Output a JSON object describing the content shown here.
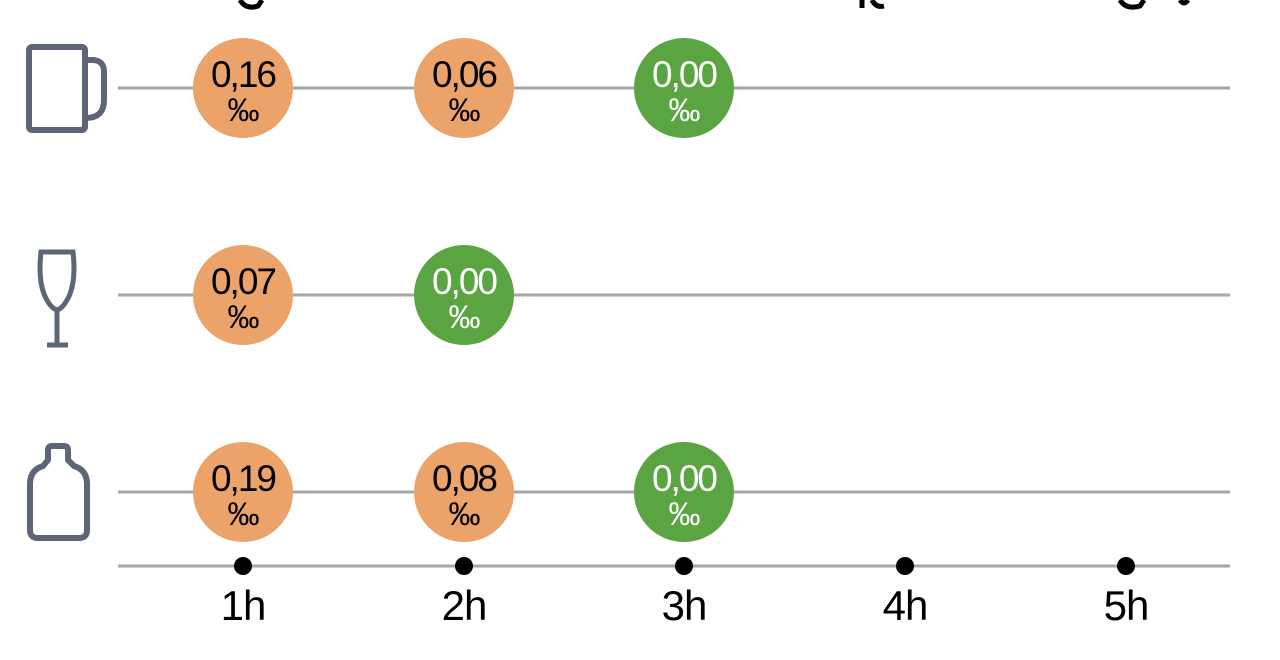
{
  "chart_data": {
    "type": "scatter",
    "title": "",
    "xlabel": "",
    "ylabel": "",
    "x_ticks": [
      "1h",
      "2h",
      "3h",
      "4h",
      "5h"
    ],
    "unit": "‰",
    "grid": false,
    "legend": "none",
    "series": [
      {
        "icon": "beer-mug-icon",
        "values": [
          {
            "x": "1h",
            "label": "0,16",
            "value": 0.16
          },
          {
            "x": "2h",
            "label": "0,06",
            "value": 0.06
          },
          {
            "x": "3h",
            "label": "0,00",
            "value": 0.0
          }
        ]
      },
      {
        "icon": "wine-glass-icon",
        "values": [
          {
            "x": "1h",
            "label": "0,07",
            "value": 0.07
          },
          {
            "x": "2h",
            "label": "0,00",
            "value": 0.0
          }
        ]
      },
      {
        "icon": "spirits-bottle-icon",
        "values": [
          {
            "x": "1h",
            "label": "0,19",
            "value": 0.19
          },
          {
            "x": "2h",
            "label": "0,08",
            "value": 0.08
          },
          {
            "x": "3h",
            "label": "0,00",
            "value": 0.0
          }
        ]
      }
    ],
    "colors": {
      "positive": "#eca36a",
      "zero": "#5aa542",
      "positive_text": "#000000",
      "zero_text": "#ffffff",
      "line": "#a6a6a6",
      "icon": "#5d6577",
      "tick_dot": "#000000"
    }
  }
}
